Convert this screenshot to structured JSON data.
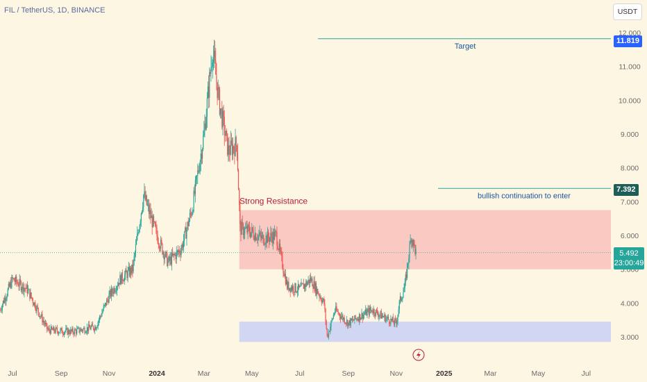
{
  "header": {
    "symbol_title": "FIL / TetherUS, 1D, BINANCE",
    "currency_button": "USDT"
  },
  "price_axis": {
    "ticks": [
      "12.000",
      "11.000",
      "10.000",
      "9.000",
      "8.000",
      "7.000",
      "6.000",
      "5.000",
      "4.000",
      "3.000"
    ],
    "tick_values": [
      12,
      11,
      10,
      9,
      8,
      7,
      6,
      5,
      4,
      3
    ]
  },
  "time_axis": {
    "labels": [
      "Jul",
      "Sep",
      "Nov",
      "2024",
      "Mar",
      "May",
      "Jul",
      "Sep",
      "Nov",
      "2025",
      "Mar",
      "May",
      "Jul"
    ],
    "bold": [
      false,
      false,
      false,
      true,
      false,
      false,
      false,
      false,
      false,
      true,
      false,
      false,
      false
    ]
  },
  "price_tags": {
    "target_price": "11.819",
    "entry_price": "7.392",
    "last_price": "5.492",
    "countdown": "23:00:49"
  },
  "annotations": {
    "target_label": "Target",
    "entry_label": "bullish continuation to enter",
    "resistance_label": "Strong Resistance"
  },
  "colors": {
    "background": "#fdf6e3",
    "up": "#26a69a",
    "down": "#ef5350",
    "resistance_zone": "#f8b9b5",
    "support_zone": "#c5cff5",
    "target_line": "#26a69a",
    "target_tag": "#2962ff",
    "entry_tag": "#1e5e58",
    "annotation_text": "#1a56a0",
    "resistance_text": "#b8193a"
  },
  "chart_data": {
    "type": "candlestick",
    "title": "FIL / TetherUS, 1D, BINANCE",
    "y_range": [
      2.5,
      12.3
    ],
    "x_range": [
      "2023-06-15",
      "2025-07-31"
    ],
    "levels": {
      "target": 11.819,
      "entry": 7.392,
      "last": 5.492
    },
    "zones": [
      {
        "name": "Strong Resistance",
        "from": 5.0,
        "to": 6.75,
        "start": "2024-04-15",
        "end": "2025-07-31"
      },
      {
        "name": "",
        "from": 2.85,
        "to": 3.45,
        "start": "2024-04-15",
        "end": "2025-07-31"
      }
    ],
    "trend": {
      "dates": [
        "2023-06-15",
        "2023-07-01",
        "2023-07-20",
        "2023-08-15",
        "2023-09-15",
        "2023-10-15",
        "2023-11-01",
        "2023-11-15",
        "2023-12-01",
        "2023-12-15",
        "2024-01-01",
        "2024-01-15",
        "2024-02-01",
        "2024-02-15",
        "2024-03-01",
        "2024-03-12",
        "2024-03-20",
        "2024-04-01",
        "2024-04-12",
        "2024-04-16",
        "2024-05-01",
        "2024-05-15",
        "2024-06-01",
        "2024-06-15",
        "2024-07-01",
        "2024-07-15",
        "2024-08-01",
        "2024-08-05",
        "2024-08-15",
        "2024-09-01",
        "2024-09-15",
        "2024-10-01",
        "2024-10-15",
        "2024-11-01",
        "2024-11-05",
        "2024-11-12",
        "2024-11-20",
        "2024-11-26"
      ],
      "close": [
        3.8,
        4.7,
        4.4,
        3.2,
        3.15,
        3.3,
        4.2,
        4.7,
        5.0,
        7.2,
        6.0,
        5.2,
        5.6,
        6.8,
        9.0,
        11.5,
        10.0,
        8.5,
        8.7,
        6.2,
        6.1,
        5.9,
        6.0,
        4.5,
        4.4,
        4.7,
        4.0,
        3.0,
        3.8,
        3.4,
        3.6,
        3.8,
        3.6,
        3.4,
        4.0,
        4.5,
        6.0,
        5.49
      ]
    }
  }
}
